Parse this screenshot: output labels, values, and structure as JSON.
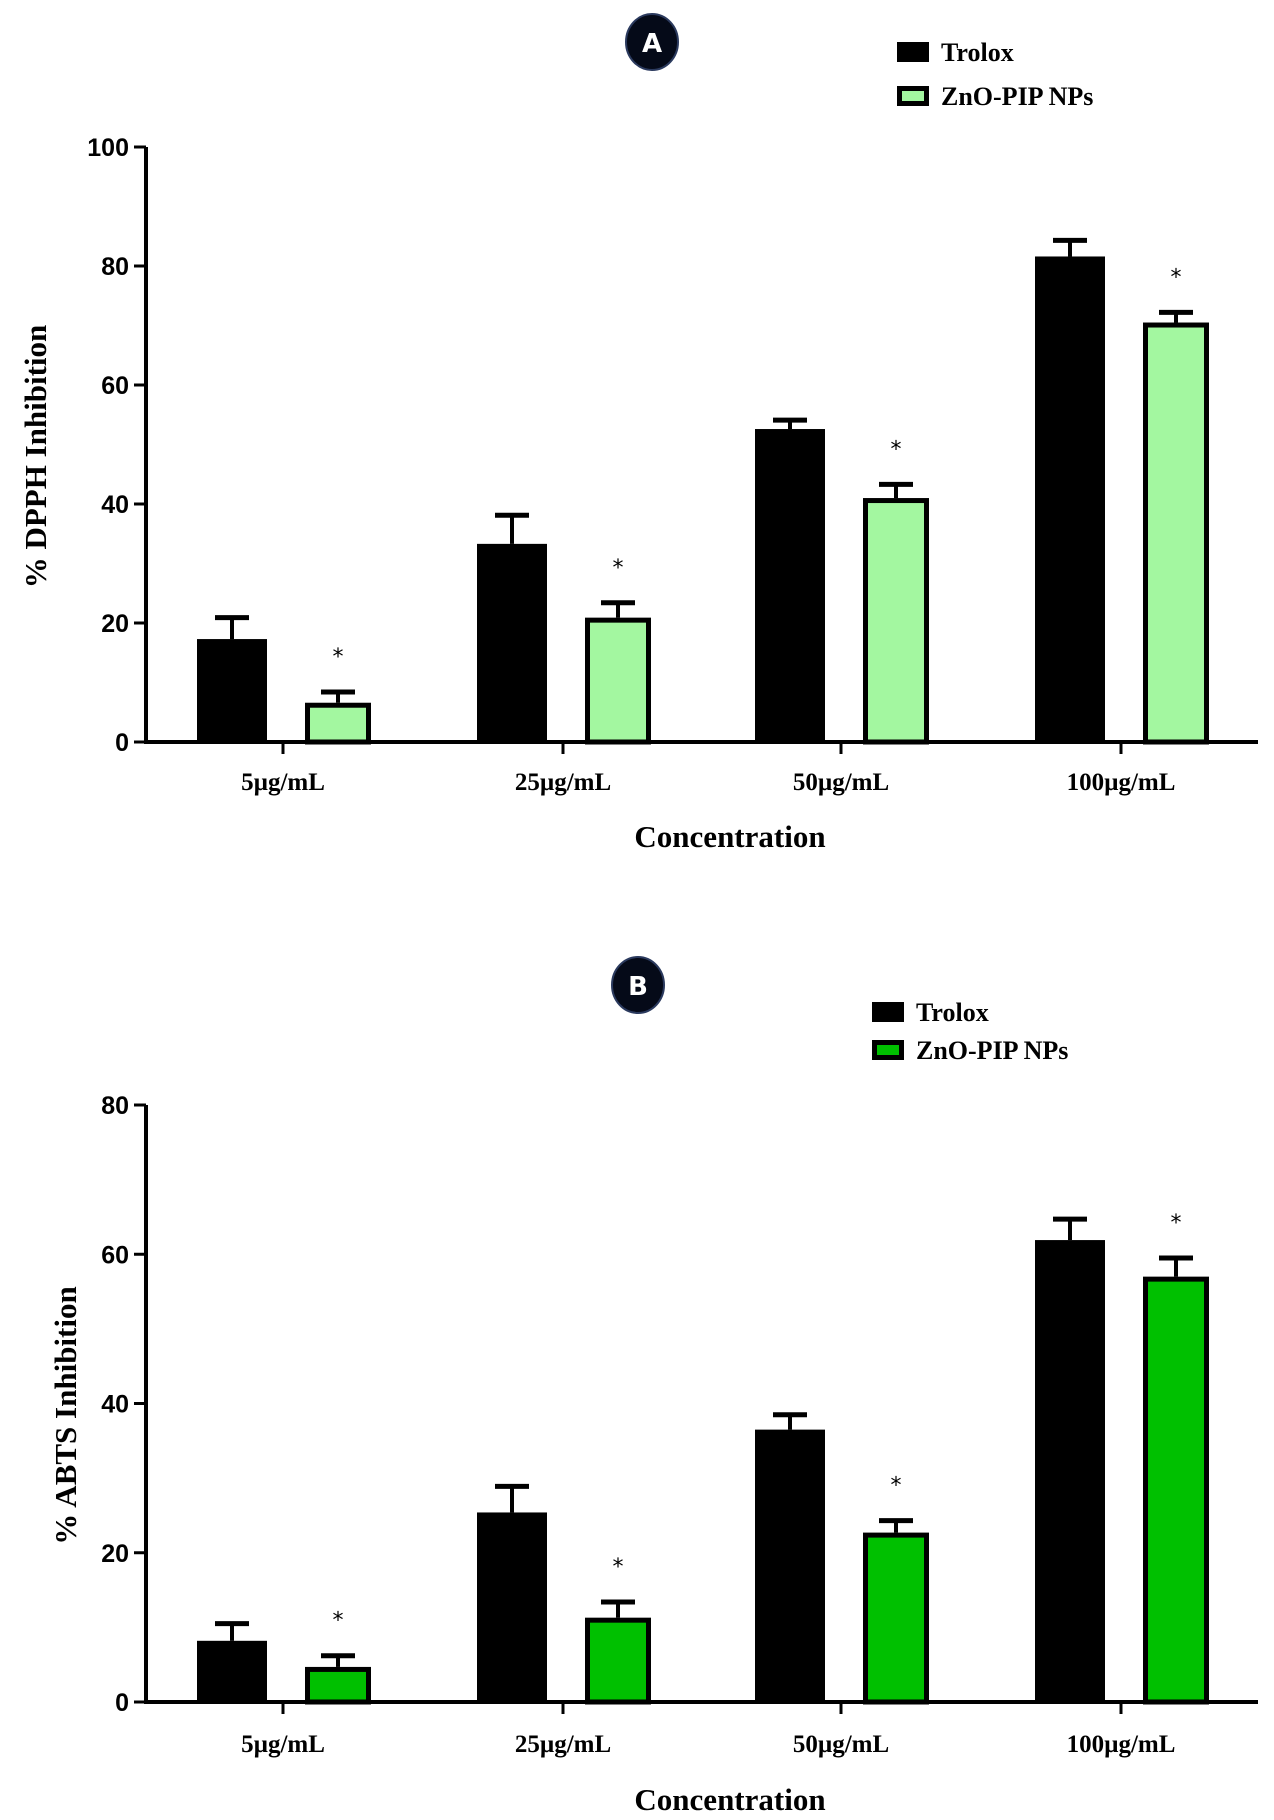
{
  "chart_data": [
    {
      "type": "bar",
      "panel_label": "A",
      "title": "",
      "xlabel": "Concentration",
      "ylabel": "% DPPH Inhibition",
      "ylim": [
        0,
        100
      ],
      "yticks": [
        0,
        20,
        40,
        60,
        80,
        100
      ],
      "grid": false,
      "legend_position": "top-right",
      "categories": [
        "5µg/mL",
        "25µg/mL",
        "50µg/mL",
        "100µg/mL"
      ],
      "series": [
        {
          "name": "Trolox",
          "color": "#000000",
          "values": [
            17.3,
            33.3,
            52.6,
            81.6
          ],
          "error": [
            3.6,
            4.8,
            1.5,
            2.7
          ],
          "significance": [
            "",
            "",
            "",
            ""
          ]
        },
        {
          "name": "ZnO-PIP NPs",
          "color": "#A3F7A0",
          "values": [
            6.6,
            20.9,
            41.0,
            70.5
          ],
          "error": [
            1.8,
            2.5,
            2.3,
            1.7
          ],
          "significance": [
            "*",
            "*",
            "*",
            "*"
          ]
        }
      ]
    },
    {
      "type": "bar",
      "panel_label": "B",
      "title": "",
      "xlabel": "Concentration",
      "ylabel": "% ABTS Inhibition",
      "ylim": [
        0,
        80
      ],
      "yticks": [
        0,
        20,
        40,
        60,
        80
      ],
      "grid": false,
      "legend_position": "top-right",
      "categories": [
        "5µg/mL",
        "25µg/mL",
        "50µg/mL",
        "100µg/mL"
      ],
      "series": [
        {
          "name": "Trolox",
          "color": "#000000",
          "values": [
            8.2,
            25.4,
            36.5,
            61.9
          ],
          "error": [
            2.3,
            3.5,
            2.0,
            2.8
          ],
          "significance": [
            "",
            "",
            "",
            ""
          ]
        },
        {
          "name": "ZnO-PIP NPs",
          "color": "#00C000",
          "values": [
            4.7,
            11.3,
            22.7,
            57.0
          ],
          "error": [
            1.5,
            2.1,
            1.6,
            2.5
          ],
          "significance": [
            "*",
            "*",
            "*",
            "*"
          ]
        }
      ]
    }
  ]
}
